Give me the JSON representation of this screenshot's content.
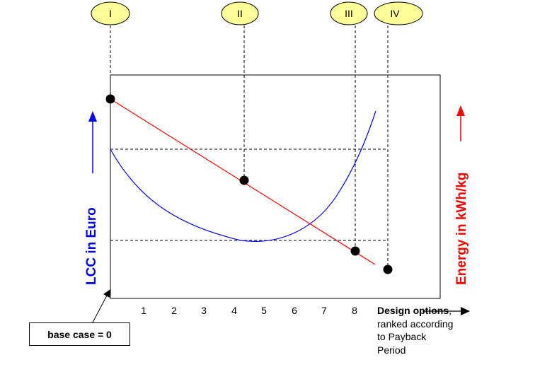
{
  "options": [
    {
      "label": "I",
      "color": "#ffff99"
    },
    {
      "label": "II",
      "color": "#ffff99"
    },
    {
      "label": "III",
      "color": "#ffff99"
    },
    {
      "label": "IV",
      "color": "#ffff99"
    }
  ],
  "x_ticks": [
    "1",
    "2",
    "3",
    "4",
    "5",
    "6",
    "7",
    "8"
  ],
  "left_axis_title": "LCC in Euro",
  "right_axis_title": "Energy in kWh/kg",
  "x_axis_title": {
    "bold": "Design options",
    "comma": ",",
    "rest": "ranked according to Payback Period"
  },
  "base_case_label": "base case = 0",
  "colors": {
    "lcc_curve": "#0000ff",
    "energy_line": "#ff0000",
    "bubble_fill": "#ffff99",
    "axis": "#000000"
  }
}
